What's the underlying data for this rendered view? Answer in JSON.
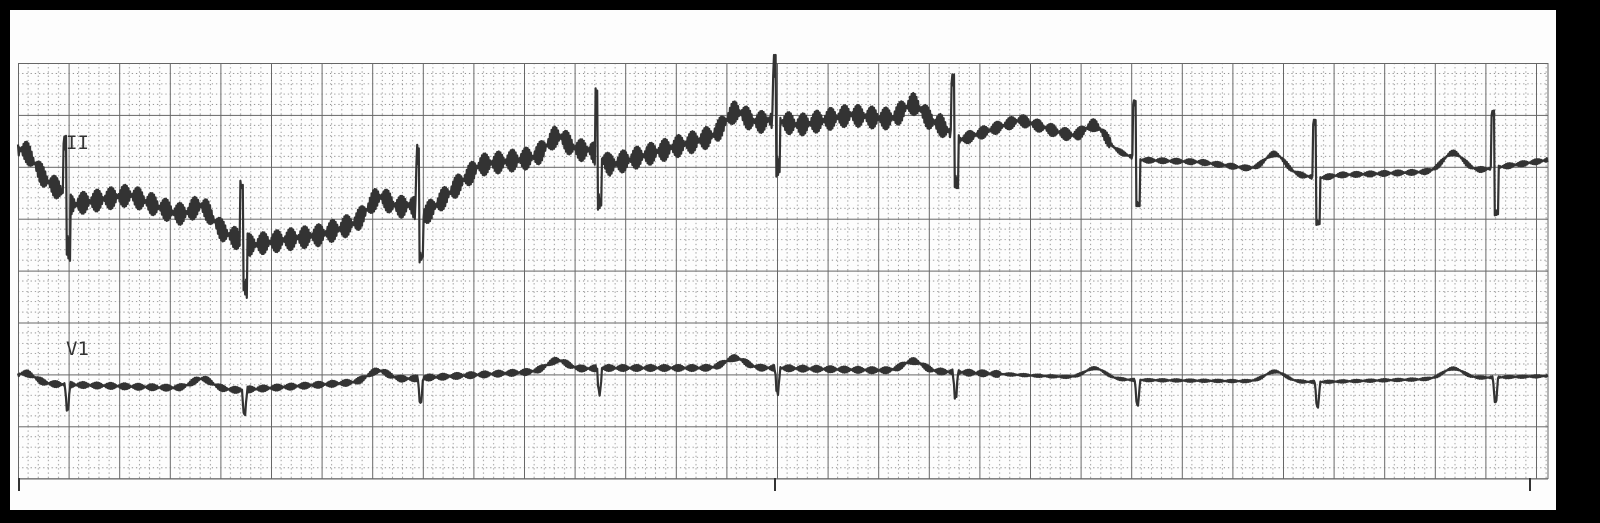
{
  "leads": [
    {
      "label": "II"
    },
    {
      "label": "V1"
    }
  ]
}
